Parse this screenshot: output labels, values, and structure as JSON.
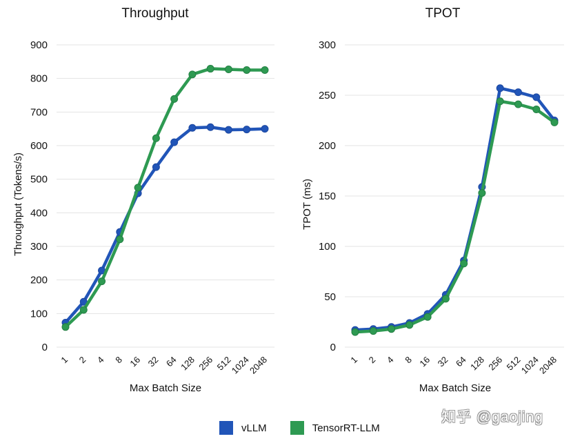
{
  "legend": {
    "items": [
      {
        "label": "vLLM",
        "color": "#2155b8"
      },
      {
        "label": "TensorRT-LLM",
        "color": "#2e9a52"
      }
    ]
  },
  "watermark": "知乎 @gaojing",
  "chart_data": [
    {
      "type": "line",
      "title": "Throughput",
      "xlabel": "Max Batch Size",
      "ylabel": "Throughput (Tokens/s)",
      "categories": [
        "1",
        "2",
        "4",
        "8",
        "16",
        "32",
        "64",
        "128",
        "256",
        "512",
        "1024",
        "2048"
      ],
      "ylim": [
        0,
        900
      ],
      "yticks": [
        0,
        100,
        200,
        300,
        400,
        500,
        600,
        700,
        800,
        900
      ],
      "grid": true,
      "series": [
        {
          "name": "vLLM",
          "color": "#2155b8",
          "values": [
            73,
            135,
            228,
            343,
            458,
            536,
            610,
            653,
            655,
            647,
            648,
            650
          ]
        },
        {
          "name": "TensorRT-LLM",
          "color": "#2e9a52",
          "values": [
            60,
            111,
            196,
            321,
            475,
            622,
            739,
            812,
            829,
            827,
            825,
            825
          ]
        }
      ]
    },
    {
      "type": "line",
      "title": "TPOT",
      "xlabel": "Max Batch Size",
      "ylabel": "TPOT (ms)",
      "categories": [
        "1",
        "2",
        "4",
        "8",
        "16",
        "32",
        "64",
        "128",
        "256",
        "512",
        "1024",
        "2048"
      ],
      "ylim": [
        0,
        300
      ],
      "yticks": [
        0,
        50,
        100,
        150,
        200,
        250,
        300
      ],
      "grid": true,
      "series": [
        {
          "name": "vLLM",
          "color": "#2155b8",
          "values": [
            17,
            18,
            20,
            24,
            33,
            52,
            86,
            159,
            257,
            253,
            248,
            225
          ]
        },
        {
          "name": "TensorRT-LLM",
          "color": "#2e9a52",
          "values": [
            15,
            16,
            18,
            22,
            30,
            48,
            83,
            153,
            244,
            241,
            236,
            223
          ]
        }
      ]
    }
  ]
}
